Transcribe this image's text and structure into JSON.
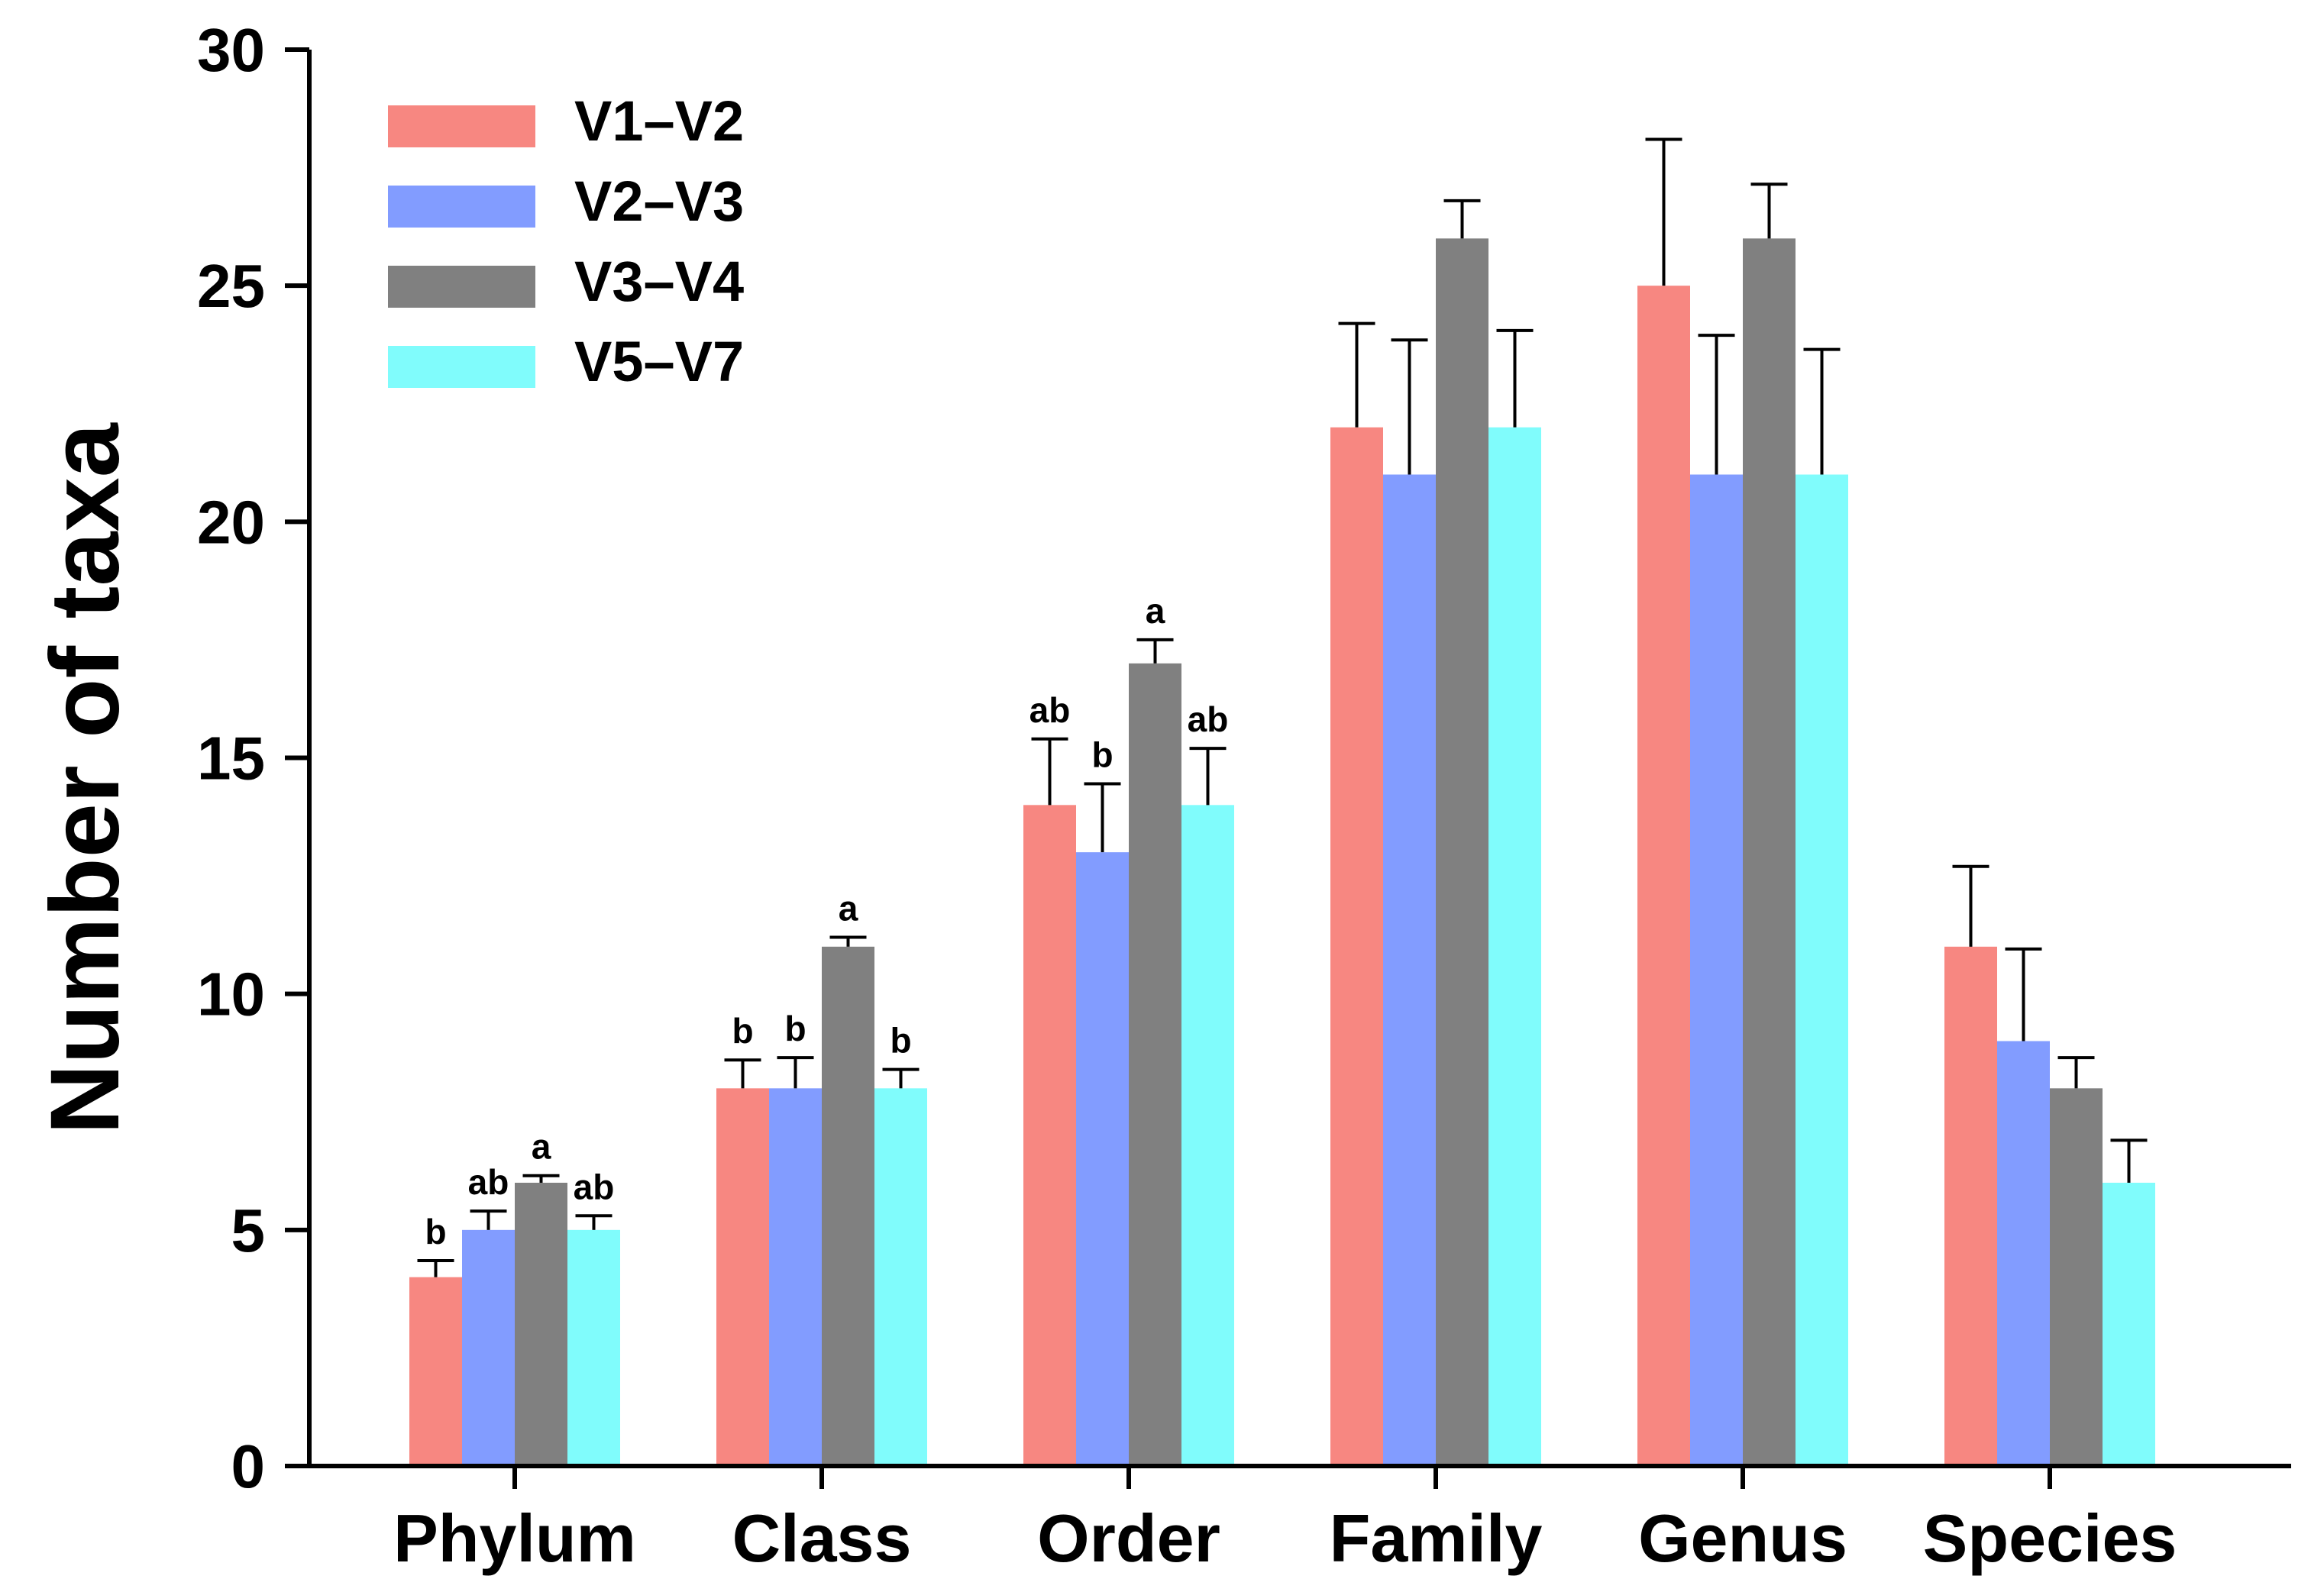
{
  "chart_data": {
    "type": "bar",
    "title": "",
    "xlabel": "",
    "ylabel": "Number of taxa",
    "ylim": [
      0,
      30
    ],
    "yticks": [
      0,
      5,
      10,
      15,
      20,
      25,
      30
    ],
    "grid": false,
    "legend_position": "top-left",
    "categories": [
      "Phylum",
      "Class",
      "Order",
      "Family",
      "Genus",
      "Species"
    ],
    "series": [
      {
        "name": "V1–V2",
        "color": "#f78781",
        "values": [
          4,
          8,
          14,
          22,
          25,
          11
        ],
        "errors": [
          0.35,
          0.6,
          1.4,
          2.2,
          3.1,
          1.7
        ],
        "labels": [
          "b",
          "b",
          "ab",
          "",
          "",
          ""
        ]
      },
      {
        "name": "V2–V3",
        "color": "#829cff",
        "values": [
          5,
          8,
          13,
          21,
          21,
          9
        ],
        "errors": [
          0.4,
          0.65,
          1.45,
          2.85,
          2.95,
          1.95
        ],
        "labels": [
          "ab",
          "b",
          "b",
          "",
          "",
          ""
        ]
      },
      {
        "name": "V3–V4",
        "color": "#808080",
        "values": [
          6,
          11,
          17,
          26,
          26,
          8
        ],
        "errors": [
          0.15,
          0.2,
          0.5,
          0.8,
          1.15,
          0.65
        ],
        "labels": [
          "a",
          "a",
          "a",
          "",
          "",
          ""
        ]
      },
      {
        "name": "V5–V7",
        "color": "#80fcfc",
        "values": [
          5,
          8,
          14,
          22,
          21,
          6
        ],
        "errors": [
          0.3,
          0.4,
          1.2,
          2.05,
          2.65,
          0.9
        ],
        "labels": [
          "ab",
          "b",
          "ab",
          "",
          "",
          ""
        ]
      }
    ]
  }
}
